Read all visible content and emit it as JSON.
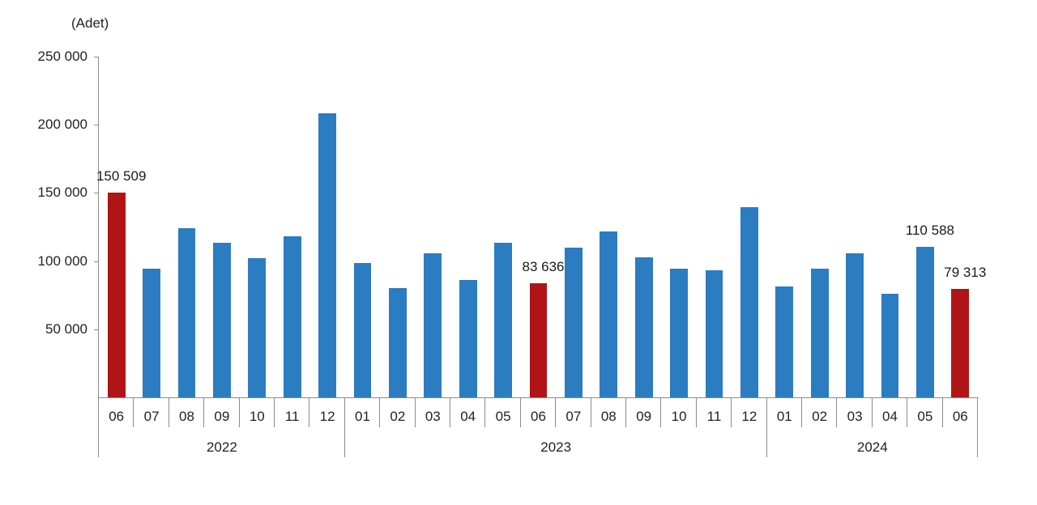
{
  "chart_data": {
    "type": "bar",
    "title": "",
    "ylabel": "(Adet)",
    "xlabel": "",
    "ylim": [
      0,
      250000
    ],
    "yticks": [
      "250 000",
      "200 000",
      "150 000",
      "100 000",
      "50 000"
    ],
    "ytick_values": [
      250000,
      200000,
      150000,
      100000,
      50000
    ],
    "grid": false,
    "legend": null,
    "colors": {
      "default": "#2B7CC1",
      "highlight": "#B01416"
    },
    "categories": [
      "06",
      "07",
      "08",
      "09",
      "10",
      "11",
      "12",
      "01",
      "02",
      "03",
      "04",
      "05",
      "06",
      "07",
      "08",
      "09",
      "10",
      "11",
      "12",
      "01",
      "02",
      "03",
      "04",
      "05",
      "06"
    ],
    "years": [
      {
        "label": "2022",
        "start": 0,
        "end": 7
      },
      {
        "label": "2023",
        "start": 7,
        "end": 19
      },
      {
        "label": "2024",
        "start": 19,
        "end": 25
      }
    ],
    "series": [
      {
        "name": "Adet",
        "values": [
          150509,
          94300,
          124000,
          113700,
          102400,
          117900,
          208600,
          98500,
          80100,
          105800,
          86200,
          113700,
          83636,
          109700,
          122000,
          102600,
          94300,
          93300,
          139300,
          81100,
          94500,
          105800,
          75900,
          110588,
          79313
        ],
        "highlight": [
          true,
          false,
          false,
          false,
          false,
          false,
          false,
          false,
          false,
          false,
          false,
          false,
          true,
          false,
          false,
          false,
          false,
          false,
          false,
          false,
          false,
          false,
          false,
          false,
          true
        ],
        "data_labels": [
          "150 509",
          "",
          "",
          "",
          "",
          "",
          "",
          "",
          "",
          "",
          "",
          "",
          "83 636",
          "",
          "",
          "",
          "",
          "",
          "",
          "",
          "",
          "",
          "",
          "110 588",
          "79 313"
        ]
      }
    ],
    "annotations": [
      "150 509",
      "83 636",
      "110 588",
      "79 313"
    ]
  }
}
